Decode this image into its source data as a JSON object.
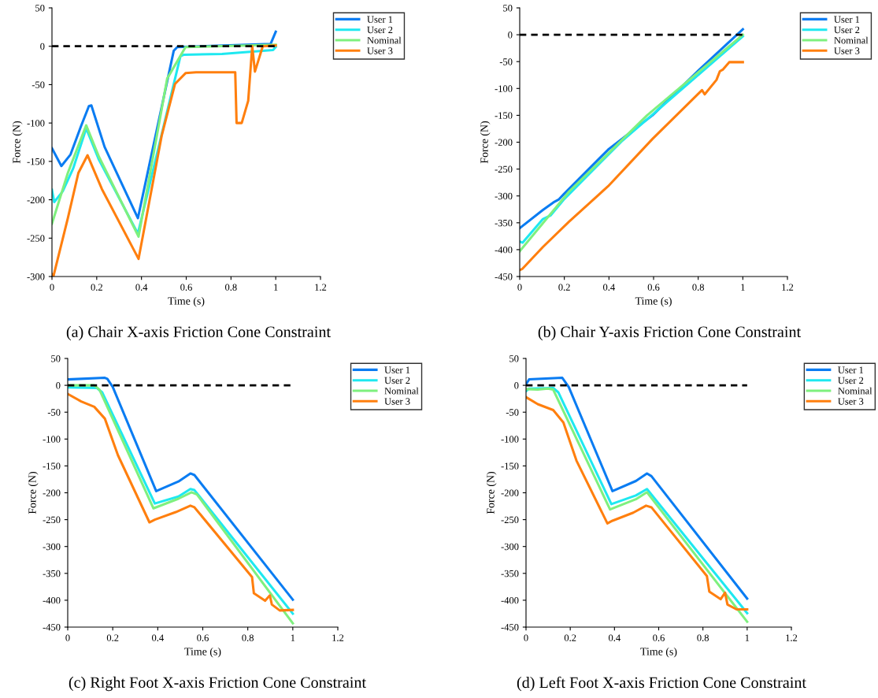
{
  "chart_data": [
    {
      "type": "line",
      "title": "(a) Chair X-axis Friction Cone Constraint",
      "xlabel": "Time (s)",
      "ylabel": "Force (N)",
      "xlim": [
        0,
        1.2
      ],
      "xticks": [
        0,
        0.2,
        0.4,
        0.6,
        0.8,
        1,
        1.2
      ],
      "ylim": [
        -300,
        50
      ],
      "yticks": [
        -300,
        -250,
        -200,
        -150,
        -100,
        -50,
        0,
        50
      ],
      "legend": "top right",
      "grid": false,
      "series": [
        {
          "name": "User 1",
          "color": "#0a7cf2",
          "x": [
            0,
            0.042,
            0.083,
            0.13,
            0.165,
            0.176,
            0.235,
            0.384,
            0.544,
            0.56,
            0.977,
            1
          ],
          "values": [
            -133,
            -156,
            -141,
            -104,
            -78,
            -77,
            -131,
            -224,
            -6,
            -1,
            3,
            19
          ]
        },
        {
          "name": "User 2",
          "color": "#1ee8f0",
          "x": [
            0,
            0.01,
            0.048,
            0.095,
            0.153,
            0.21,
            0.384,
            0.574,
            0.59,
            0.76,
            0.988,
            1
          ],
          "values": [
            -187,
            -203,
            -189,
            -159,
            -107,
            -148,
            -244,
            -13,
            -11,
            -10,
            -5,
            -1
          ]
        },
        {
          "name": "Nominal",
          "color": "#7ef07e",
          "x": [
            0,
            0.071,
            0.153,
            0.21,
            0.387,
            0.515,
            0.597,
            1
          ],
          "values": [
            -231,
            -165,
            -103,
            -144,
            -248,
            -42,
            -1,
            2
          ]
        },
        {
          "name": "User 3",
          "color": "#ff7f0e",
          "x": [
            0,
            0.007,
            0.071,
            0.118,
            0.159,
            0.223,
            0.387,
            0.49,
            0.55,
            0.597,
            0.644,
            0.819,
            0.825,
            0.848,
            0.877,
            0.895,
            0.907,
            0.942,
            1
          ],
          "values": [
            -297,
            -299,
            -224,
            -165,
            -142,
            -186,
            -277,
            -117,
            -49,
            -35,
            -34,
            -34,
            -100,
            -100,
            -71,
            0,
            -33,
            0,
            1
          ]
        },
        {
          "color": "#000000",
          "line_style": "dashed",
          "x": [
            0,
            1
          ],
          "values": [
            0,
            0
          ]
        }
      ]
    },
    {
      "type": "line",
      "title": "(b) Chair Y-axis Friction Cone Constraint",
      "xlabel": "Time (s)",
      "ylabel": "Force (N)",
      "xlim": [
        0,
        1.2
      ],
      "xticks": [
        0,
        0.2,
        0.4,
        0.6,
        0.8,
        1,
        1.2
      ],
      "ylim": [
        -450,
        50
      ],
      "yticks": [
        -450,
        -400,
        -350,
        -300,
        -250,
        -200,
        -150,
        -100,
        -50,
        0,
        50
      ],
      "legend": "top right",
      "grid": false,
      "series": [
        {
          "name": "User 1",
          "color": "#0a7cf2",
          "x": [
            0,
            0.104,
            0.151,
            0.174,
            0.197,
            0.396,
            0.548,
            0.595,
            0.805,
            1
          ],
          "values": [
            -360,
            -326,
            -312,
            -307,
            -297,
            -214,
            -165,
            -150,
            -65,
            10
          ]
        },
        {
          "name": "User 2",
          "color": "#1ee8f0",
          "x": [
            0,
            0.013,
            0.104,
            0.139,
            0.197,
            0.455,
            1
          ],
          "values": [
            -385,
            -387,
            -343,
            -336,
            -307,
            -199,
            -3
          ]
        },
        {
          "name": "Nominal",
          "color": "#7ef07e",
          "x": [
            0,
            0.221,
            0.571,
            1
          ],
          "values": [
            -403,
            -292,
            -150,
            0
          ]
        },
        {
          "name": "User 3",
          "color": "#ff7f0e",
          "x": [
            0,
            0.011,
            0.104,
            0.221,
            0.396,
            0.595,
            0.817,
            0.829,
            0.882,
            0.897,
            0.91,
            0.939,
            1
          ],
          "values": [
            -438,
            -436,
            -395,
            -348,
            -282,
            -194,
            -103,
            -111,
            -84,
            -68,
            -65,
            -51,
            -51
          ]
        },
        {
          "color": "#000000",
          "line_style": "dashed",
          "x": [
            0,
            1
          ],
          "values": [
            0,
            0
          ]
        }
      ]
    },
    {
      "type": "line",
      "title": "(c) Right Foot X-axis Friction Cone Constraint",
      "xlabel": "Time (s)",
      "ylabel": "Force (N)",
      "xlim": [
        0,
        1.2
      ],
      "xticks": [
        0,
        0.2,
        0.4,
        0.6,
        0.8,
        1,
        1.2
      ],
      "ylim": [
        -450,
        50
      ],
      "yticks": [
        -450,
        -400,
        -350,
        -300,
        -250,
        -200,
        -150,
        -100,
        -50,
        0,
        50
      ],
      "legend": "top right",
      "grid": false,
      "series": [
        {
          "name": "User 1",
          "color": "#0a7cf2",
          "x": [
            0,
            0.165,
            0.176,
            0.2,
            0.393,
            0.492,
            0.545,
            0.563,
            1
          ],
          "values": [
            11,
            14,
            12,
            -3,
            -197,
            -179,
            -164,
            -167,
            -399
          ]
        },
        {
          "name": "User 2",
          "color": "#1ee8f0",
          "x": [
            0,
            0.13,
            0.153,
            0.387,
            0.492,
            0.545,
            0.563,
            1
          ],
          "values": [
            -4,
            -5,
            -13,
            -220,
            -207,
            -193,
            -195,
            -425
          ]
        },
        {
          "name": "Nominal",
          "color": "#7ef07e",
          "x": [
            0,
            0.118,
            0.141,
            0.381,
            0.492,
            0.55,
            0.574,
            1
          ],
          "values": [
            0,
            0,
            -8,
            -229,
            -211,
            -199,
            -203,
            -443
          ]
        },
        {
          "name": "User 3",
          "color": "#ff7f0e",
          "x": [
            0,
            0.06,
            0.118,
            0.165,
            0.223,
            0.363,
            0.387,
            0.48,
            0.545,
            0.563,
            0.819,
            0.827,
            0.877,
            0.898,
            0.907,
            0.942,
            1
          ],
          "values": [
            -16,
            -30,
            -40,
            -62,
            -130,
            -255,
            -250,
            -236,
            -224,
            -227,
            -357,
            -387,
            -401,
            -391,
            -408,
            -419,
            -418
          ]
        },
        {
          "color": "#000000",
          "line_style": "dashed",
          "x": [
            0,
            1
          ],
          "values": [
            0,
            0
          ]
        }
      ]
    },
    {
      "type": "line",
      "title": "(d) Left Foot X-axis Friction Cone Constraint",
      "xlabel": "Time (s)",
      "ylabel": "Force (N)",
      "xlim": [
        0,
        1.2
      ],
      "xticks": [
        0,
        0.2,
        0.4,
        0.6,
        0.8,
        1,
        1.2
      ],
      "ylim": [
        -450,
        50
      ],
      "yticks": [
        -450,
        -400,
        -350,
        -300,
        -250,
        -200,
        -150,
        -100,
        -50,
        0,
        50
      ],
      "legend": "top right",
      "grid": false,
      "series": [
        {
          "name": "User 1",
          "color": "#0a7cf2",
          "x": [
            0,
            0.014,
            0.164,
            0.193,
            0.391,
            0.497,
            0.547,
            0.567,
            1
          ],
          "values": [
            2,
            11,
            14,
            -3,
            -197,
            -178,
            -164,
            -169,
            -397
          ]
        },
        {
          "name": "User 2",
          "color": "#1ee8f0",
          "x": [
            0,
            0.014,
            0.123,
            0.146,
            0.386,
            0.497,
            0.547,
            1
          ],
          "values": [
            -11,
            -6,
            -5,
            -13,
            -221,
            -205,
            -193,
            -424
          ]
        },
        {
          "name": "Nominal",
          "color": "#7ef07e",
          "x": [
            0,
            0.053,
            0.099,
            0.123,
            0.38,
            0.497,
            0.547,
            1
          ],
          "values": [
            -7,
            -8,
            -6,
            -8,
            -231,
            -212,
            -199,
            -440
          ]
        },
        {
          "name": "User 3",
          "color": "#ff7f0e",
          "x": [
            0,
            0.053,
            0.123,
            0.169,
            0.228,
            0.368,
            0.391,
            0.485,
            0.543,
            0.567,
            0.818,
            0.829,
            0.88,
            0.9,
            0.911,
            0.952,
            1
          ],
          "values": [
            -22,
            -35,
            -46,
            -69,
            -140,
            -257,
            -252,
            -237,
            -224,
            -227,
            -355,
            -384,
            -398,
            -386,
            -408,
            -417,
            -417
          ]
        },
        {
          "color": "#000000",
          "line_style": "dashed",
          "x": [
            0,
            1
          ],
          "values": [
            0,
            0
          ]
        }
      ]
    }
  ]
}
